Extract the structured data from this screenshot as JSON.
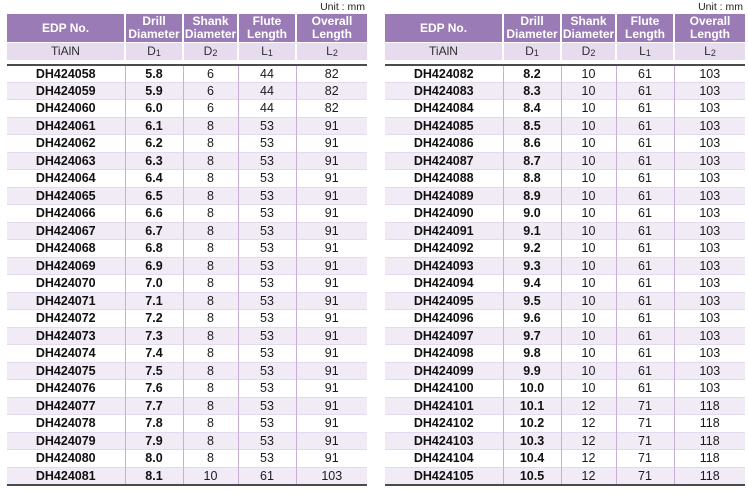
{
  "unit_label": "Unit : mm",
  "colors": {
    "header_bg": "#9a7bb5",
    "subheader_bg": "#e6dcee",
    "row_alt_bg": "#f1ebf6",
    "column_divider": "#c9afd8",
    "row_hairline": "#e4d9ee",
    "table_edge_line": "#4b4a4f",
    "header_text": "#ffffff",
    "body_text": "#1b1b1b"
  },
  "columns": {
    "edp": "EDP No.",
    "drill": "Drill Diameter",
    "shank": "Shank Diameter",
    "flute": "Flute Length",
    "overall": "Overall Length"
  },
  "subheaders": {
    "coating": "TiAlN",
    "d1": {
      "base": "D",
      "sub": "1"
    },
    "d2": {
      "base": "D",
      "sub": "2"
    },
    "l1": {
      "base": "L",
      "sub": "1"
    },
    "l2": {
      "base": "L",
      "sub": "2"
    }
  },
  "tables": [
    {
      "rows": [
        [
          "DH424058",
          "5.8",
          "6",
          "44",
          "82"
        ],
        [
          "DH424059",
          "5.9",
          "6",
          "44",
          "82"
        ],
        [
          "DH424060",
          "6.0",
          "6",
          "44",
          "82"
        ],
        [
          "DH424061",
          "6.1",
          "8",
          "53",
          "91"
        ],
        [
          "DH424062",
          "6.2",
          "8",
          "53",
          "91"
        ],
        [
          "DH424063",
          "6.3",
          "8",
          "53",
          "91"
        ],
        [
          "DH424064",
          "6.4",
          "8",
          "53",
          "91"
        ],
        [
          "DH424065",
          "6.5",
          "8",
          "53",
          "91"
        ],
        [
          "DH424066",
          "6.6",
          "8",
          "53",
          "91"
        ],
        [
          "DH424067",
          "6.7",
          "8",
          "53",
          "91"
        ],
        [
          "DH424068",
          "6.8",
          "8",
          "53",
          "91"
        ],
        [
          "DH424069",
          "6.9",
          "8",
          "53",
          "91"
        ],
        [
          "DH424070",
          "7.0",
          "8",
          "53",
          "91"
        ],
        [
          "DH424071",
          "7.1",
          "8",
          "53",
          "91"
        ],
        [
          "DH424072",
          "7.2",
          "8",
          "53",
          "91"
        ],
        [
          "DH424073",
          "7.3",
          "8",
          "53",
          "91"
        ],
        [
          "DH424074",
          "7.4",
          "8",
          "53",
          "91"
        ],
        [
          "DH424075",
          "7.5",
          "8",
          "53",
          "91"
        ],
        [
          "DH424076",
          "7.6",
          "8",
          "53",
          "91"
        ],
        [
          "DH424077",
          "7.7",
          "8",
          "53",
          "91"
        ],
        [
          "DH424078",
          "7.8",
          "8",
          "53",
          "91"
        ],
        [
          "DH424079",
          "7.9",
          "8",
          "53",
          "91"
        ],
        [
          "DH424080",
          "8.0",
          "8",
          "53",
          "91"
        ],
        [
          "DH424081",
          "8.1",
          "10",
          "61",
          "103"
        ]
      ]
    },
    {
      "rows": [
        [
          "DH424082",
          "8.2",
          "10",
          "61",
          "103"
        ],
        [
          "DH424083",
          "8.3",
          "10",
          "61",
          "103"
        ],
        [
          "DH424084",
          "8.4",
          "10",
          "61",
          "103"
        ],
        [
          "DH424085",
          "8.5",
          "10",
          "61",
          "103"
        ],
        [
          "DH424086",
          "8.6",
          "10",
          "61",
          "103"
        ],
        [
          "DH424087",
          "8.7",
          "10",
          "61",
          "103"
        ],
        [
          "DH424088",
          "8.8",
          "10",
          "61",
          "103"
        ],
        [
          "DH424089",
          "8.9",
          "10",
          "61",
          "103"
        ],
        [
          "DH424090",
          "9.0",
          "10",
          "61",
          "103"
        ],
        [
          "DH424091",
          "9.1",
          "10",
          "61",
          "103"
        ],
        [
          "DH424092",
          "9.2",
          "10",
          "61",
          "103"
        ],
        [
          "DH424093",
          "9.3",
          "10",
          "61",
          "103"
        ],
        [
          "DH424094",
          "9.4",
          "10",
          "61",
          "103"
        ],
        [
          "DH424095",
          "9.5",
          "10",
          "61",
          "103"
        ],
        [
          "DH424096",
          "9.6",
          "10",
          "61",
          "103"
        ],
        [
          "DH424097",
          "9.7",
          "10",
          "61",
          "103"
        ],
        [
          "DH424098",
          "9.8",
          "10",
          "61",
          "103"
        ],
        [
          "DH424099",
          "9.9",
          "10",
          "61",
          "103"
        ],
        [
          "DH424100",
          "10.0",
          "10",
          "61",
          "103"
        ],
        [
          "DH424101",
          "10.1",
          "12",
          "71",
          "118"
        ],
        [
          "DH424102",
          "10.2",
          "12",
          "71",
          "118"
        ],
        [
          "DH424103",
          "10.3",
          "12",
          "71",
          "118"
        ],
        [
          "DH424104",
          "10.4",
          "12",
          "71",
          "118"
        ],
        [
          "DH424105",
          "10.5",
          "12",
          "71",
          "118"
        ]
      ]
    }
  ]
}
